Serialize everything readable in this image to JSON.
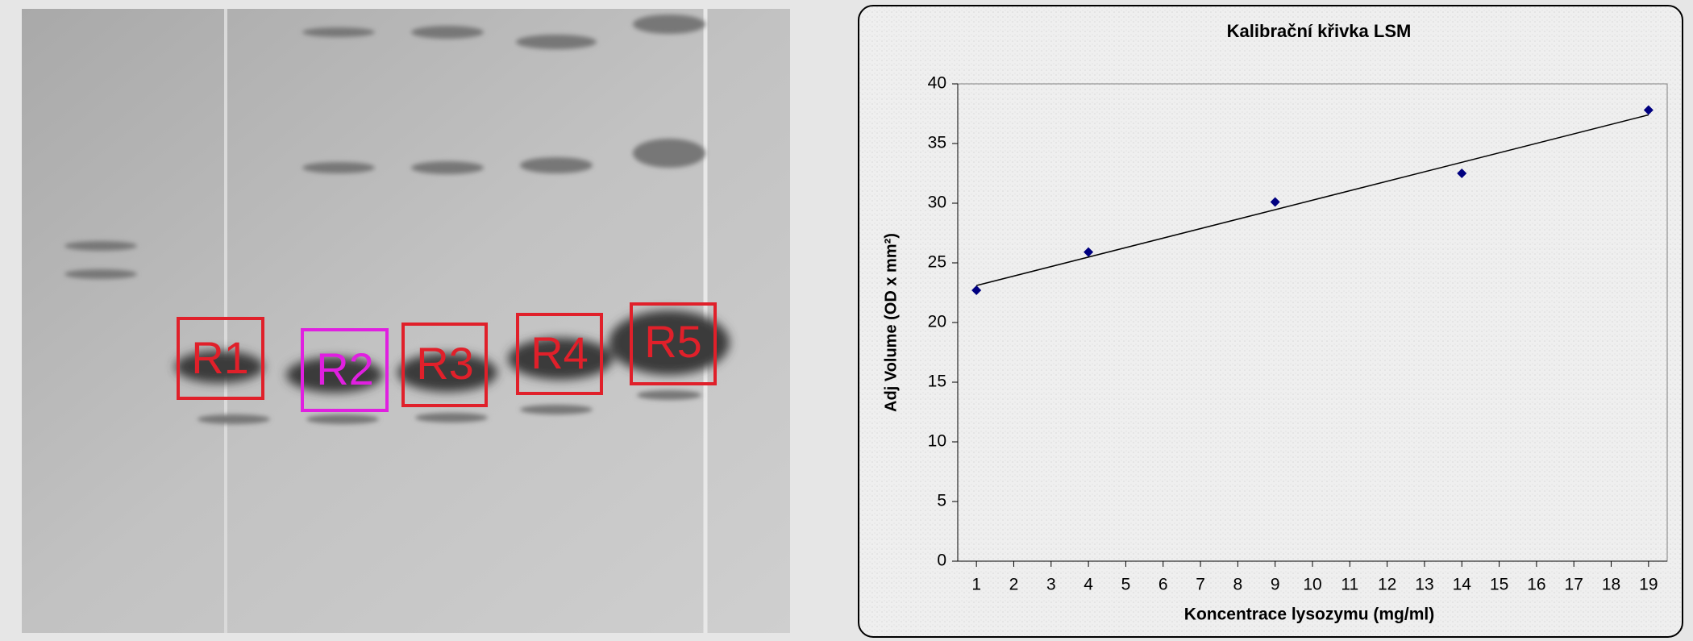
{
  "gel": {
    "regions": [
      "R1",
      "R2",
      "R3",
      "R4",
      "R5"
    ]
  },
  "chart_data": {
    "type": "scatter",
    "title": "Kalibrační křivka LSM",
    "x_label": "Koncentrace lysozymu (mg/ml)",
    "y_label": "Adj Volume (OD x mm²)",
    "series": [
      {
        "color": "#000080",
        "x": [
          1,
          4,
          9,
          14,
          19
        ],
        "values": [
          22.7,
          25.9,
          30.1,
          32.5,
          37.8
        ]
      }
    ],
    "trendline": {
      "color": "#000000",
      "x": [
        1,
        19
      ],
      "values": [
        23.1,
        37.4
      ]
    },
    "xlim": [
      0.5,
      19.5
    ],
    "xticks": [
      1,
      2,
      3,
      4,
      5,
      6,
      7,
      8,
      9,
      10,
      11,
      12,
      13,
      14,
      15,
      16,
      17,
      18,
      19
    ],
    "ylim": [
      0,
      40
    ],
    "yticks": [
      0,
      5,
      10,
      15,
      20,
      25,
      30,
      35,
      40
    ],
    "grid": false
  }
}
